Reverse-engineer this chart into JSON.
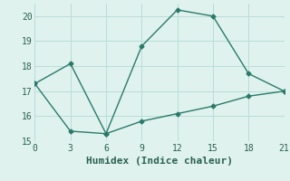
{
  "xlabel": "Humidex (Indice chaleur)",
  "line1_x": [
    0,
    3,
    6,
    9,
    12,
    15,
    18,
    21
  ],
  "line1_y": [
    17.3,
    18.1,
    15.3,
    18.8,
    20.25,
    20.0,
    17.7,
    17.0
  ],
  "line2_x": [
    0,
    3,
    6,
    9,
    12,
    15,
    18,
    21
  ],
  "line2_y": [
    17.3,
    15.4,
    15.3,
    15.8,
    16.1,
    16.4,
    16.8,
    17.0
  ],
  "line_color": "#2a7a6a",
  "bg_color": "#dff2ee",
  "grid_color": "#b8ddd8",
  "xlim": [
    0,
    21
  ],
  "ylim": [
    15,
    20.5
  ],
  "ylim_display": [
    15,
    20
  ],
  "xticks": [
    0,
    3,
    6,
    9,
    12,
    15,
    18,
    21
  ],
  "yticks": [
    15,
    16,
    17,
    18,
    19,
    20
  ],
  "marker": "D",
  "marker_size": 2.5,
  "linewidth": 1.0,
  "font_color": "#2a6050",
  "xlabel_fontsize": 8,
  "tick_fontsize": 7
}
